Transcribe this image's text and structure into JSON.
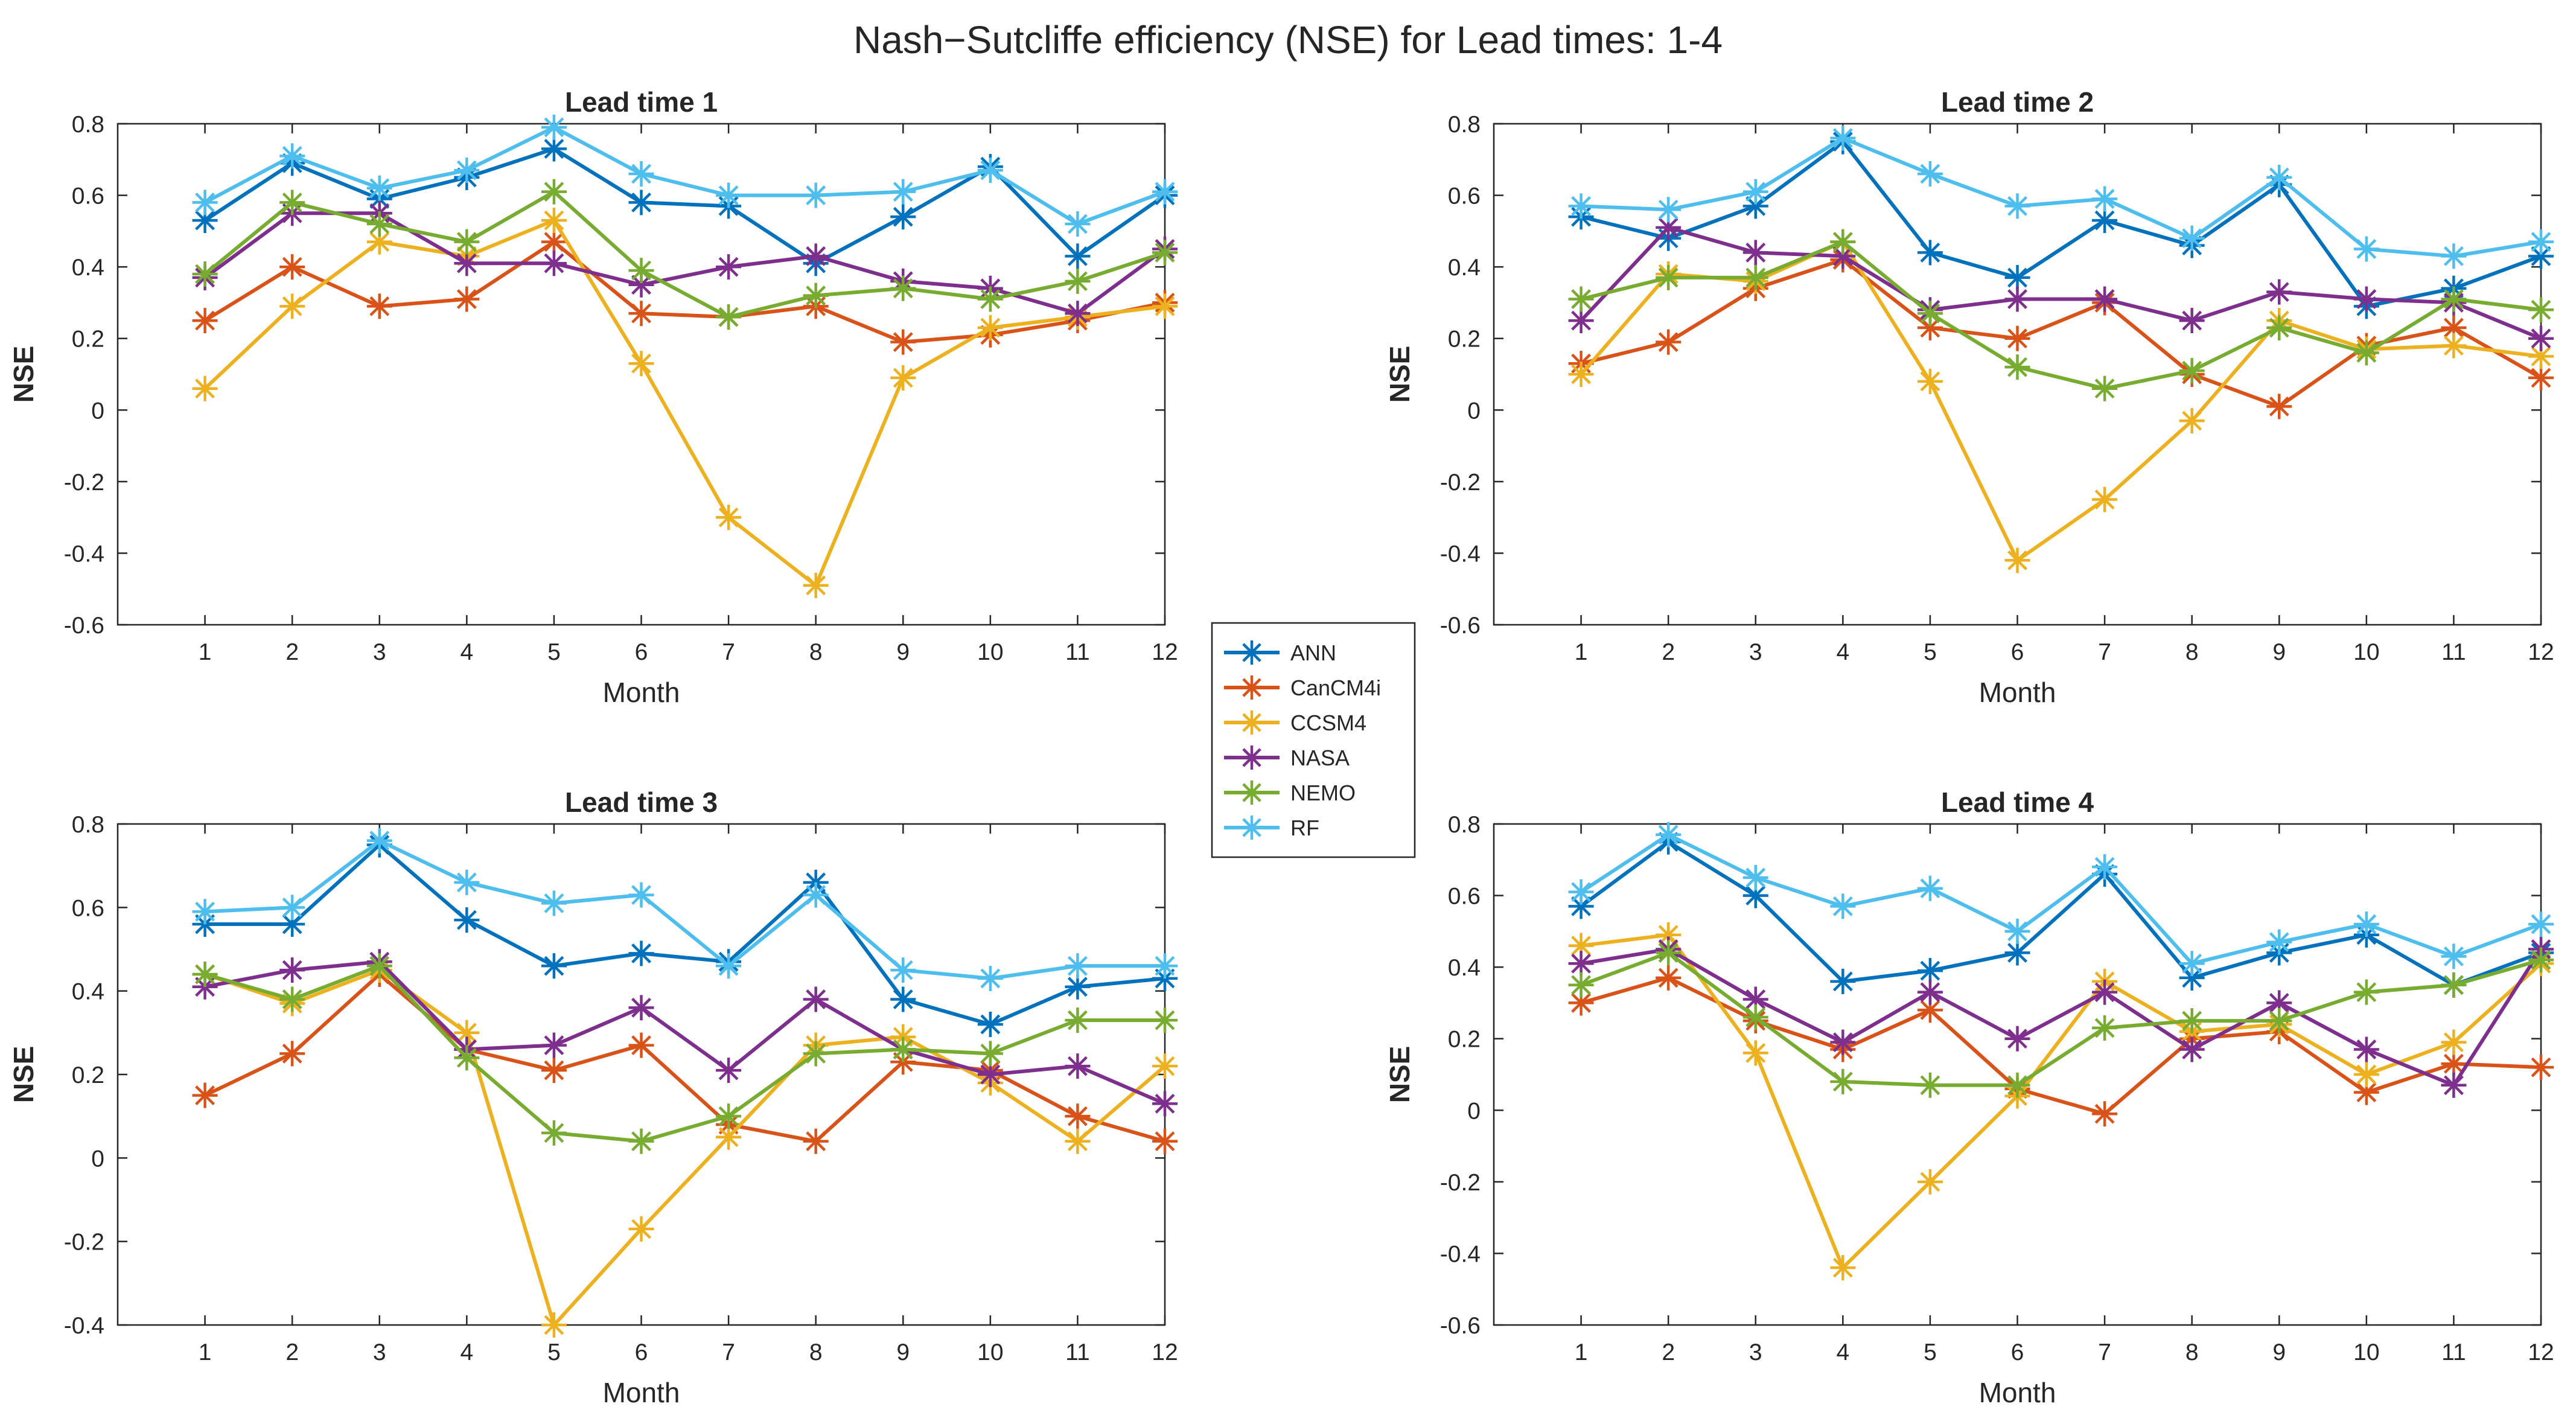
{
  "figure_title": "Nash−Sutcliffe efficiency (NSE) for Lead times: 1-4",
  "legend": [
    {
      "name": "ANN",
      "color": "#0072BD"
    },
    {
      "name": "CanCM4i",
      "color": "#D95319"
    },
    {
      "name": "CCSM4",
      "color": "#EDB120"
    },
    {
      "name": "NASA",
      "color": "#7E2F8E"
    },
    {
      "name": "NEMO",
      "color": "#77AC30"
    },
    {
      "name": "RF",
      "color": "#4DBEEE"
    }
  ],
  "chart_data": [
    {
      "type": "line",
      "title": "Lead time 1",
      "xlabel": "Month",
      "ylabel": "NSE",
      "xlim": [
        0,
        12
      ],
      "ylim": [
        -0.6,
        0.8
      ],
      "x": [
        1,
        2,
        3,
        4,
        5,
        6,
        7,
        8,
        9,
        10,
        11,
        12
      ],
      "x_ticks": [
        "1",
        "2",
        "3",
        "4",
        "5",
        "6",
        "7",
        "8",
        "9",
        "10",
        "11",
        "12"
      ],
      "y_ticks": [
        -0.6,
        -0.4,
        -0.2,
        0,
        0.2,
        0.4,
        0.6,
        0.8
      ],
      "y_tick_labels": [
        "-0.6",
        "-0.4",
        "-0.2",
        "0",
        "0.2",
        "0.4",
        "0.6",
        "0.8"
      ],
      "series": [
        {
          "name": "ANN",
          "values": [
            0.53,
            0.69,
            0.59,
            0.65,
            0.73,
            0.58,
            0.57,
            0.41,
            0.54,
            0.68,
            0.43,
            0.6
          ]
        },
        {
          "name": "CanCM4i",
          "values": [
            0.25,
            0.4,
            0.29,
            0.31,
            0.47,
            0.27,
            0.26,
            0.29,
            0.19,
            0.21,
            0.25,
            0.3
          ]
        },
        {
          "name": "CCSM4",
          "values": [
            0.06,
            0.29,
            0.47,
            0.43,
            0.53,
            0.13,
            -0.3,
            -0.49,
            0.09,
            0.23,
            0.26,
            0.29
          ]
        },
        {
          "name": "NASA",
          "values": [
            0.37,
            0.55,
            0.55,
            0.41,
            0.41,
            0.35,
            0.4,
            0.43,
            0.36,
            0.34,
            0.27,
            0.45
          ]
        },
        {
          "name": "NEMO",
          "values": [
            0.38,
            0.58,
            0.52,
            0.47,
            0.61,
            0.39,
            0.26,
            0.32,
            0.34,
            0.31,
            0.36,
            0.44
          ]
        },
        {
          "name": "RF",
          "values": [
            0.58,
            0.71,
            0.62,
            0.67,
            0.79,
            0.66,
            0.6,
            0.6,
            0.61,
            0.67,
            0.52,
            0.61
          ]
        }
      ]
    },
    {
      "type": "line",
      "title": "Lead time 2",
      "xlabel": "Month",
      "ylabel": "NSE",
      "xlim": [
        0,
        12
      ],
      "ylim": [
        -0.6,
        0.8
      ],
      "x": [
        1,
        2,
        3,
        4,
        5,
        6,
        7,
        8,
        9,
        10,
        11,
        12
      ],
      "x_ticks": [
        "1",
        "2",
        "3",
        "4",
        "5",
        "6",
        "7",
        "8",
        "9",
        "10",
        "11",
        "12"
      ],
      "y_ticks": [
        -0.6,
        -0.4,
        -0.2,
        0,
        0.2,
        0.4,
        0.6,
        0.8
      ],
      "y_tick_labels": [
        "-0.6",
        "-0.4",
        "-0.2",
        "0",
        "0.2",
        "0.4",
        "0.6",
        "0.8"
      ],
      "series": [
        {
          "name": "ANN",
          "values": [
            0.54,
            0.48,
            0.57,
            0.75,
            0.44,
            0.37,
            0.53,
            0.46,
            0.63,
            0.29,
            0.34,
            0.43
          ]
        },
        {
          "name": "CanCM4i",
          "values": [
            0.13,
            0.19,
            0.34,
            0.42,
            0.23,
            0.2,
            0.3,
            0.1,
            0.01,
            0.18,
            0.23,
            0.09
          ]
        },
        {
          "name": "CCSM4",
          "values": [
            0.1,
            0.38,
            0.36,
            0.47,
            0.08,
            -0.42,
            -0.25,
            -0.03,
            0.25,
            0.17,
            0.18,
            0.15
          ]
        },
        {
          "name": "NASA",
          "values": [
            0.25,
            0.51,
            0.44,
            0.43,
            0.28,
            0.31,
            0.31,
            0.25,
            0.33,
            0.31,
            0.3,
            0.2
          ]
        },
        {
          "name": "NEMO",
          "values": [
            0.31,
            0.37,
            0.37,
            0.47,
            0.27,
            0.12,
            0.06,
            0.11,
            0.23,
            0.16,
            0.31,
            0.28
          ]
        },
        {
          "name": "RF",
          "values": [
            0.57,
            0.56,
            0.61,
            0.76,
            0.66,
            0.57,
            0.59,
            0.48,
            0.65,
            0.45,
            0.43,
            0.47
          ]
        }
      ]
    },
    {
      "type": "line",
      "title": "Lead time 3",
      "xlabel": "Month",
      "ylabel": "NSE",
      "xlim": [
        0,
        12
      ],
      "ylim": [
        -0.4,
        0.8
      ],
      "x": [
        1,
        2,
        3,
        4,
        5,
        6,
        7,
        8,
        9,
        10,
        11,
        12
      ],
      "x_ticks": [
        "1",
        "2",
        "3",
        "4",
        "5",
        "6",
        "7",
        "8",
        "9",
        "10",
        "11",
        "12"
      ],
      "y_ticks": [
        -0.4,
        -0.2,
        0,
        0.2,
        0.4,
        0.6,
        0.8
      ],
      "y_tick_labels": [
        "-0.4",
        "-0.2",
        "0",
        "0.2",
        "0.4",
        "0.6",
        "0.8"
      ],
      "series": [
        {
          "name": "ANN",
          "values": [
            0.56,
            0.56,
            0.75,
            0.57,
            0.46,
            0.49,
            0.47,
            0.66,
            0.38,
            0.32,
            0.41,
            0.43
          ]
        },
        {
          "name": "CanCM4i",
          "values": [
            0.15,
            0.25,
            0.44,
            0.26,
            0.21,
            0.27,
            0.08,
            0.04,
            0.23,
            0.21,
            0.1,
            0.04
          ]
        },
        {
          "name": "CCSM4",
          "values": [
            0.44,
            0.37,
            0.45,
            0.3,
            -0.4,
            -0.17,
            0.05,
            0.27,
            0.29,
            0.18,
            0.04,
            0.22
          ]
        },
        {
          "name": "NASA",
          "values": [
            0.41,
            0.45,
            0.47,
            0.26,
            0.27,
            0.36,
            0.21,
            0.38,
            0.26,
            0.2,
            0.22,
            0.13
          ]
        },
        {
          "name": "NEMO",
          "values": [
            0.44,
            0.38,
            0.46,
            0.24,
            0.06,
            0.04,
            0.1,
            0.25,
            0.26,
            0.25,
            0.33,
            0.33
          ]
        },
        {
          "name": "RF",
          "values": [
            0.59,
            0.6,
            0.76,
            0.66,
            0.61,
            0.63,
            0.46,
            0.63,
            0.45,
            0.43,
            0.46,
            0.46
          ]
        }
      ]
    },
    {
      "type": "line",
      "title": "Lead time 4",
      "xlabel": "Month",
      "ylabel": "NSE",
      "xlim": [
        0,
        12
      ],
      "ylim": [
        -0.6,
        0.8
      ],
      "x": [
        1,
        2,
        3,
        4,
        5,
        6,
        7,
        8,
        9,
        10,
        11,
        12
      ],
      "x_ticks": [
        "1",
        "2",
        "3",
        "4",
        "5",
        "6",
        "7",
        "8",
        "9",
        "10",
        "11",
        "12"
      ],
      "y_ticks": [
        -0.6,
        -0.4,
        -0.2,
        0,
        0.2,
        0.4,
        0.6,
        0.8
      ],
      "y_tick_labels": [
        "-0.6",
        "-0.4",
        "-0.2",
        "0",
        "0.2",
        "0.4",
        "0.6",
        "0.8"
      ],
      "series": [
        {
          "name": "ANN",
          "values": [
            0.57,
            0.75,
            0.6,
            0.36,
            0.39,
            0.44,
            0.66,
            0.37,
            0.44,
            0.49,
            0.35,
            0.44
          ]
        },
        {
          "name": "CanCM4i",
          "values": [
            0.3,
            0.37,
            0.25,
            0.17,
            0.28,
            0.06,
            -0.01,
            0.2,
            0.22,
            0.05,
            0.13,
            0.12
          ]
        },
        {
          "name": "CCSM4",
          "values": [
            0.46,
            0.49,
            0.16,
            -0.44,
            -0.2,
            0.04,
            0.36,
            0.22,
            0.24,
            0.1,
            0.19,
            0.41
          ]
        },
        {
          "name": "NASA",
          "values": [
            0.41,
            0.45,
            0.31,
            0.19,
            0.33,
            0.2,
            0.33,
            0.17,
            0.3,
            0.17,
            0.07,
            0.45
          ]
        },
        {
          "name": "NEMO",
          "values": [
            0.35,
            0.44,
            0.26,
            0.08,
            0.07,
            0.07,
            0.23,
            0.25,
            0.25,
            0.33,
            0.35,
            0.42
          ]
        },
        {
          "name": "RF",
          "values": [
            0.61,
            0.77,
            0.65,
            0.57,
            0.62,
            0.5,
            0.68,
            0.41,
            0.47,
            0.52,
            0.43,
            0.52
          ]
        }
      ]
    }
  ]
}
